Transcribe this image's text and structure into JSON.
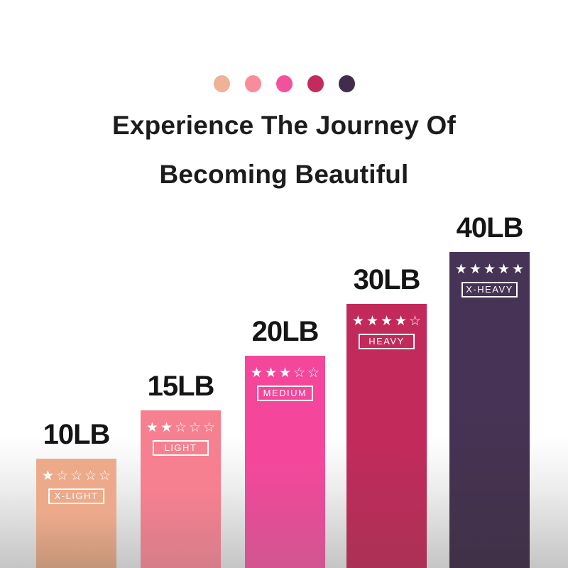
{
  "header": {
    "dots": [
      {
        "name": "x-light",
        "color": "#eeb296"
      },
      {
        "name": "light",
        "color": "#f78d9b"
      },
      {
        "name": "medium",
        "color": "#f2519c"
      },
      {
        "name": "heavy",
        "color": "#c32b5d"
      },
      {
        "name": "x-heavy",
        "color": "#422c4e"
      }
    ],
    "title_line1": "Experience The Journey Of",
    "title_line2": "Becoming Beautiful",
    "title_color": "#1c1c1c"
  },
  "chart_data": {
    "type": "bar",
    "title": "Experience The Journey Of Becoming Beautiful",
    "categories": [
      "X-LIGHT",
      "LIGHT",
      "MEDIUM",
      "HEAVY",
      "X-HEAVY"
    ],
    "values": [
      10,
      15,
      20,
      30,
      40
    ],
    "unit": "LB",
    "value_labels": [
      "10LB",
      "15LB",
      "20LB",
      "30LB",
      "40LB"
    ],
    "star_ratings": [
      1,
      2,
      3,
      4,
      5
    ],
    "star_display": [
      "★☆☆☆☆",
      "★★☆☆☆",
      "★★★☆☆",
      "★★★★☆",
      "★★★★★"
    ],
    "bar_colors_top": [
      "#edaa8b",
      "#f6808f",
      "#f4479c",
      "#c32a5c",
      "#473355"
    ],
    "bar_colors_bottom": [
      "#c49579",
      "#d67d8a",
      "#d15590",
      "#ab3156",
      "#403147"
    ],
    "xlabel": "",
    "ylabel": "",
    "legend": "none",
    "grid": false,
    "background_fade_bottom": "#c5c5c5",
    "star_color": "#ffffff",
    "badge_border_color": "#ffffff"
  }
}
